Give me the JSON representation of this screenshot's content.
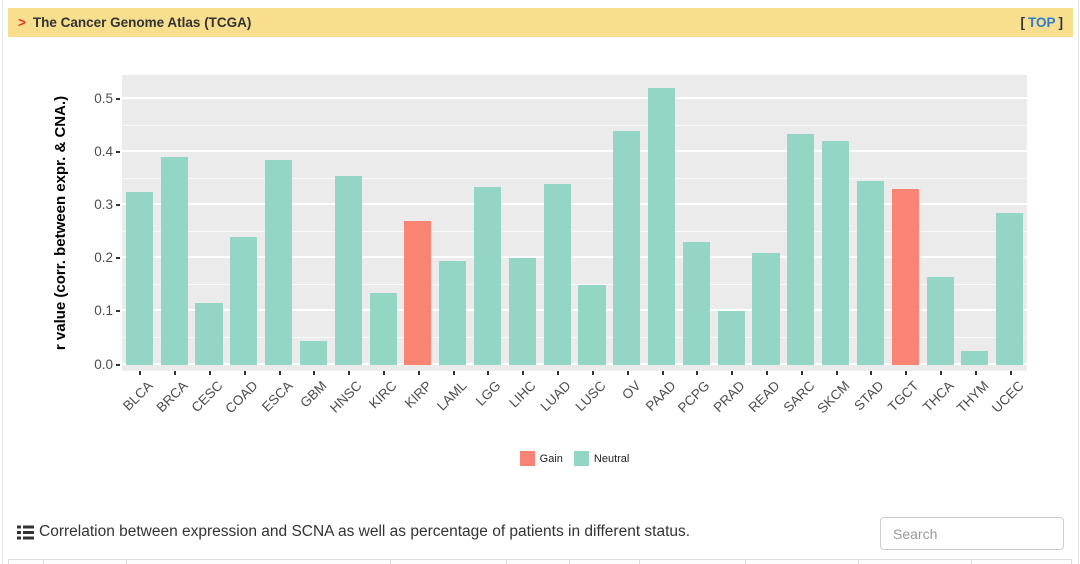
{
  "header": {
    "arrow": ">",
    "title": "The Cancer Genome Atlas (TCGA)",
    "top": {
      "prefix": "[",
      "label": "TOP",
      "suffix": "]"
    }
  },
  "chart_data": {
    "type": "bar",
    "title": "",
    "xlabel": "",
    "ylabel": "r value (corr. between expr. & CNA.)",
    "ylim": [
      0,
      0.55
    ],
    "yticks": [
      "0.0",
      "0.1",
      "0.2",
      "0.3",
      "0.4",
      "0.5"
    ],
    "grid": true,
    "panel_bg": "#EBEBEB",
    "legend_position": "bottom",
    "categories": [
      "BLCA",
      "BRCA",
      "CESC",
      "COAD",
      "ESCA",
      "GBM",
      "HNSC",
      "KIRC",
      "KIRP",
      "LAML",
      "LGG",
      "LIHC",
      "LUAD",
      "LUSC",
      "OV",
      "PAAD",
      "PCPG",
      "PRAD",
      "READ",
      "SARC",
      "SKCM",
      "STAD",
      "TGCT",
      "THCA",
      "THYM",
      "UCEC"
    ],
    "values": [
      0.325,
      0.39,
      0.115,
      0.24,
      0.385,
      0.045,
      0.355,
      0.135,
      0.27,
      0.195,
      0.335,
      0.2,
      0.34,
      0.15,
      0.44,
      0.52,
      0.23,
      0.1,
      0.21,
      0.435,
      0.42,
      0.345,
      0.33,
      0.165,
      0.025,
      0.285
    ],
    "status": [
      "Neutral",
      "Neutral",
      "Neutral",
      "Neutral",
      "Neutral",
      "Neutral",
      "Neutral",
      "Neutral",
      "Gain",
      "Neutral",
      "Neutral",
      "Neutral",
      "Neutral",
      "Neutral",
      "Neutral",
      "Neutral",
      "Neutral",
      "Neutral",
      "Neutral",
      "Neutral",
      "Neutral",
      "Neutral",
      "Gain",
      "Neutral",
      "Neutral",
      "Neutral"
    ],
    "series_colors": {
      "Gain": "#FA8473",
      "Neutral": "#94D6C5"
    },
    "legend": [
      {
        "label": "Gain",
        "color": "#FA8473"
      },
      {
        "label": "Neutral",
        "color": "#94D6C5"
      }
    ]
  },
  "caption": {
    "icon": "list-icon",
    "text": "Correlation between expression and SCNA as well as percentage of patients in different status."
  },
  "search": {
    "placeholder": "Search"
  },
  "colors": {
    "header_bg": "#F8DF8D",
    "accent_red": "#EE3124",
    "link_blue": "#2E7BD6",
    "axis_text": "#4D4D4D",
    "panel_bg": "#EBEBEB"
  }
}
